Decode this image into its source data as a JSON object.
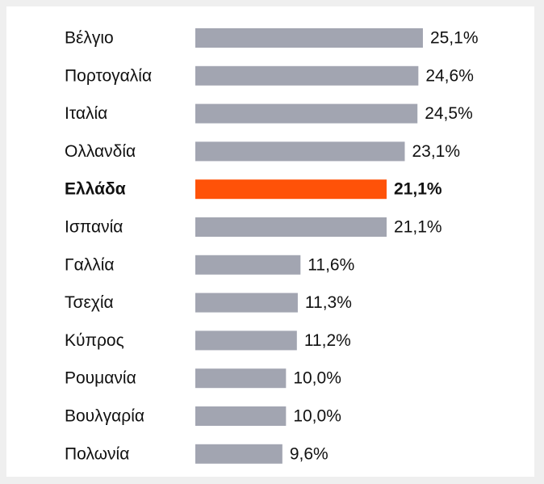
{
  "chart_data": {
    "type": "barh",
    "categories": [
      "Βέλγιο",
      "Πορτογαλία",
      "Ιταλία",
      "Ολλανδία",
      "Ελλάδα",
      "Ισπανία",
      "Γαλλία",
      "Τσεχία",
      "Κύπρος",
      "Ρουμανία",
      "Βουλγαρία",
      "Πολωνία"
    ],
    "values": [
      25.1,
      24.6,
      24.5,
      23.1,
      21.1,
      21.1,
      11.6,
      11.3,
      11.2,
      10.0,
      10.0,
      9.6
    ],
    "value_labels": [
      "25,1%",
      "24,6%",
      "24,5%",
      "23,1%",
      "21,1%",
      "21,1%",
      "11,6%",
      "11,3%",
      "11,2%",
      "10,0%",
      "10,0%",
      "9,6%"
    ],
    "color": "#a2a5b1",
    "highlight_color": "#ff5208",
    "highlight": 4,
    "xlim": [
      0,
      30
    ]
  }
}
